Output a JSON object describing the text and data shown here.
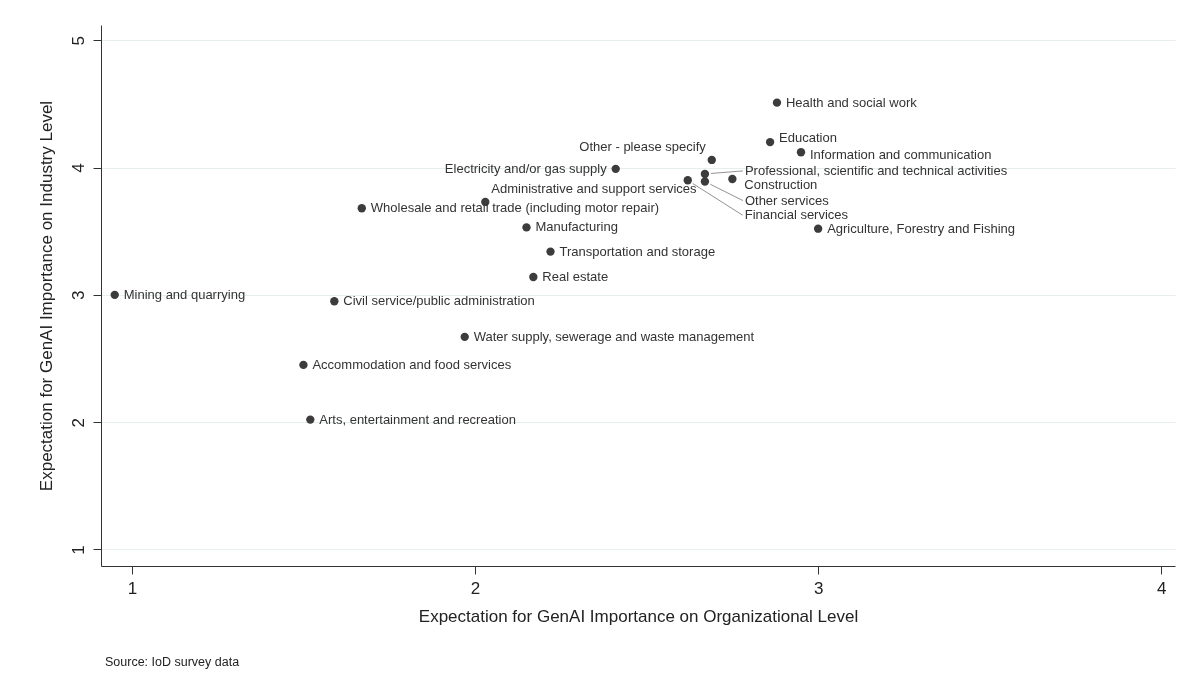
{
  "chart_data": {
    "type": "scatter",
    "xlabel": "Expectation for GenAI Importance on Organizational Level",
    "ylabel": "Expectation for GenAI Importance on Industry Level",
    "x": [
      2.88,
      2.86,
      2.95,
      2.69,
      2.41,
      2.67,
      2.62,
      2.67,
      2.75,
      3.0,
      2.03,
      1.67,
      2.15,
      2.22,
      2.17,
      0.95,
      1.59,
      1.97,
      1.5,
      1.52
    ],
    "series": [
      {
        "color": "#3c3c3c",
        "values": [
          4.51,
          4.2,
          4.12,
          4.06,
          3.99,
          3.95,
          3.9,
          3.89,
          3.91,
          3.52,
          3.73,
          3.68,
          3.53,
          3.34,
          3.14,
          3.0,
          2.95,
          2.67,
          2.45,
          2.02
        ]
      }
    ],
    "xlim": [
      0.91,
      4.04
    ],
    "xticks": [
      1,
      2,
      3,
      4
    ],
    "ylim": [
      0.87,
      5.12
    ],
    "yticks": [
      1,
      2,
      3,
      4,
      5
    ],
    "grid": "y",
    "marker": "circle",
    "annotations": [
      {
        "text": "Health and social work",
        "x": 2.88,
        "y": 4.51
      },
      {
        "text": "Education",
        "x": 2.86,
        "y": 4.2
      },
      {
        "text": "Information and communication",
        "x": 2.95,
        "y": 4.12
      },
      {
        "text": "Other - please specify",
        "x": 2.69,
        "y": 4.06
      },
      {
        "text": "Electricity and/or gas supply",
        "x": 2.41,
        "y": 3.99
      },
      {
        "text": "Professional, scientific and technical activities",
        "x": 2.67,
        "y": 3.95
      },
      {
        "text": "Financial services",
        "x": 2.62,
        "y": 3.9
      },
      {
        "text": "Other services",
        "x": 2.67,
        "y": 3.89
      },
      {
        "text": "Construction",
        "x": 2.75,
        "y": 3.91
      },
      {
        "text": "Agriculture, Forestry and Fishing",
        "x": 3.0,
        "y": 3.52
      },
      {
        "text": "Administrative and support services",
        "x": 2.03,
        "y": 3.73
      },
      {
        "text": "Wholesale and retail trade (including motor repair)",
        "x": 1.67,
        "y": 3.68
      },
      {
        "text": "Manufacturing",
        "x": 2.15,
        "y": 3.53
      },
      {
        "text": "Transportation and storage",
        "x": 2.22,
        "y": 3.34
      },
      {
        "text": "Real estate",
        "x": 2.17,
        "y": 3.14
      },
      {
        "text": "Mining and quarrying",
        "x": 0.95,
        "y": 3.0
      },
      {
        "text": "Civil service/public administration",
        "x": 1.59,
        "y": 2.95
      },
      {
        "text": "Water supply, sewerage and waste management",
        "x": 1.97,
        "y": 2.67
      },
      {
        "text": "Accommodation and food services",
        "x": 1.5,
        "y": 2.45
      },
      {
        "text": "Arts, entertainment and recreation",
        "x": 1.52,
        "y": 2.02
      },
      "Source: IoD survey data"
    ]
  }
}
